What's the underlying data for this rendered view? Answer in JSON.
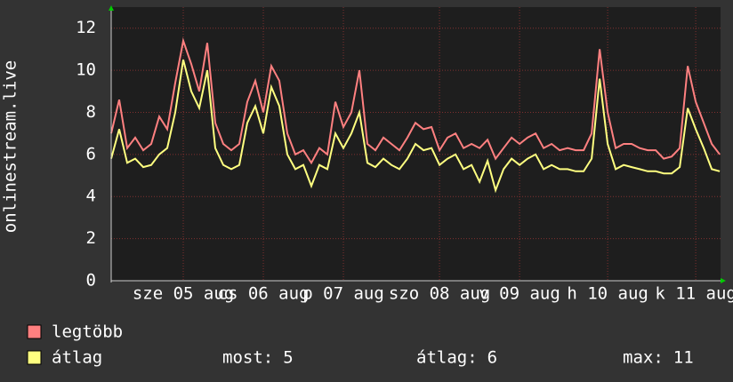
{
  "chart_data": {
    "type": "line",
    "ylabel": "onlinestream.live",
    "categories": [
      null,
      null,
      null,
      null,
      null,
      null,
      null,
      null,
      null,
      "sze 05 aug",
      null,
      null,
      null,
      null,
      null,
      null,
      null,
      null,
      null,
      "cs 06 aug",
      null,
      null,
      null,
      null,
      null,
      null,
      null,
      null,
      null,
      "p 07 aug",
      null,
      null,
      null,
      null,
      null,
      null,
      null,
      null,
      null,
      null,
      null,
      "szo 08 aug",
      null,
      null,
      null,
      null,
      null,
      null,
      null,
      null,
      null,
      "v 09 aug",
      null,
      null,
      null,
      null,
      null,
      null,
      null,
      null,
      null,
      null,
      "h 10 aug",
      null,
      null,
      null,
      null,
      null,
      null,
      null,
      null,
      null,
      null,
      "k 11 aug",
      null,
      null,
      null
    ],
    "series": [
      {
        "name": "legtöbb",
        "color": "#ff8080",
        "values": [
          7,
          8.6,
          6.3,
          6.8,
          6.2,
          6.5,
          7.8,
          7.2,
          9.4,
          11.4,
          10.3,
          9,
          11.3,
          7.5,
          6.5,
          6.2,
          6.5,
          8.5,
          9.5,
          8,
          10.2,
          9.5,
          7,
          6,
          6.2,
          5.6,
          6.3,
          6,
          8.5,
          7.3,
          8,
          10,
          6.5,
          6.2,
          6.8,
          6.5,
          6.2,
          6.8,
          7.5,
          7.2,
          7.3,
          6.2,
          6.8,
          7,
          6.3,
          6.5,
          6.3,
          6.7,
          5.8,
          6.3,
          6.8,
          6.5,
          6.8,
          7,
          6.3,
          6.5,
          6.2,
          6.3,
          6.2,
          6.2,
          7,
          11,
          8,
          6.3,
          6.5,
          6.5,
          6.3,
          6.2,
          6.2,
          5.8,
          5.9,
          6.3,
          10.2,
          8.5,
          7.5,
          6.5,
          6
        ]
      },
      {
        "name": "átlag",
        "color": "#ffff80",
        "values": [
          5.8,
          7.2,
          5.6,
          5.8,
          5.4,
          5.5,
          6,
          6.3,
          8,
          10.5,
          9,
          8.2,
          10,
          6.3,
          5.5,
          5.3,
          5.5,
          7.5,
          8.3,
          7,
          9.2,
          8.3,
          6,
          5.3,
          5.5,
          4.5,
          5.5,
          5.3,
          7,
          6.3,
          7,
          8,
          5.6,
          5.4,
          5.8,
          5.5,
          5.3,
          5.8,
          6.5,
          6.2,
          6.3,
          5.5,
          5.8,
          6,
          5.3,
          5.5,
          4.7,
          5.7,
          4.3,
          5.3,
          5.8,
          5.5,
          5.8,
          6,
          5.3,
          5.5,
          5.3,
          5.3,
          5.2,
          5.2,
          5.8,
          9.6,
          6.5,
          5.3,
          5.5,
          5.4,
          5.3,
          5.2,
          5.2,
          5.1,
          5.1,
          5.4,
          8.2,
          7.2,
          6.3,
          5.3,
          5.2
        ]
      }
    ],
    "stats": [
      {
        "label": "most:",
        "value": 5
      },
      {
        "label": "átlag:",
        "value": 6
      },
      {
        "label": "max:",
        "value": 11
      }
    ],
    "ylim": [
      0,
      13
    ],
    "yticks": [
      0,
      2,
      4,
      6,
      8,
      10,
      12
    ],
    "grid": true
  }
}
